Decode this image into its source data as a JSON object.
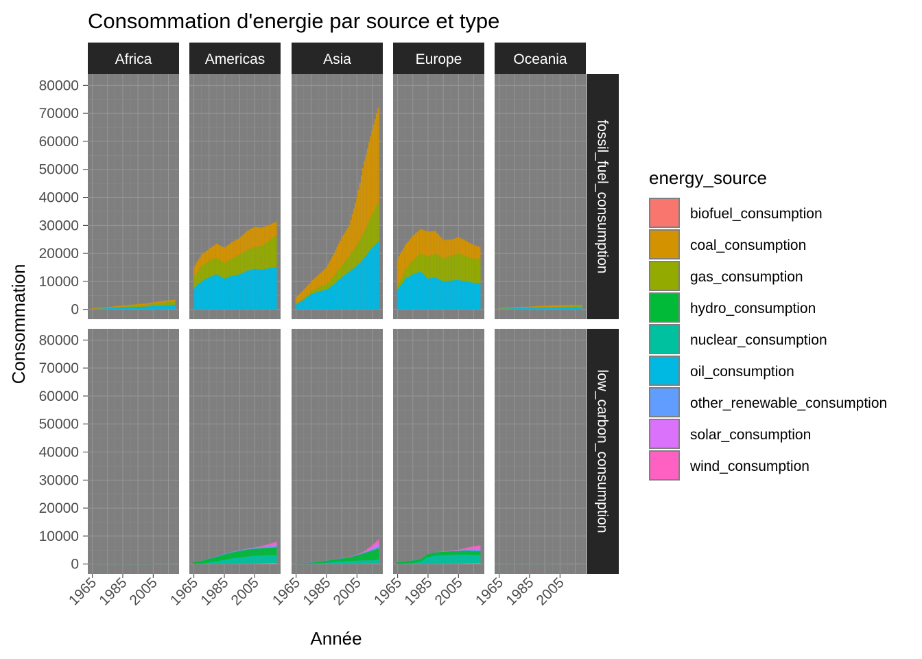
{
  "chart_data": {
    "type": "area",
    "subtype": "stacked-bar-facets",
    "title": "Consommation d'energie par source et type",
    "xlabel": "Année",
    "ylabel": "Consommation",
    "ylim": [
      -3500,
      84000
    ],
    "y_ticks": [
      0,
      10000,
      20000,
      30000,
      40000,
      50000,
      60000,
      70000,
      80000
    ],
    "xlim": [
      1962,
      2022
    ],
    "x_ticks": [
      1965,
      1985,
      2005
    ],
    "facet_cols": [
      "Africa",
      "Americas",
      "Asia",
      "Europe",
      "Oceania"
    ],
    "facet_rows": [
      "fossil_fuel_consumption",
      "low_carbon_consumption"
    ],
    "legend": {
      "title": "energy_source",
      "position": "right",
      "items": [
        {
          "name": "biofuel_consumption",
          "color": "#F8766D"
        },
        {
          "name": "coal_consumption",
          "color": "#D39200"
        },
        {
          "name": "gas_consumption",
          "color": "#93AA00"
        },
        {
          "name": "hydro_consumption",
          "color": "#00BA38"
        },
        {
          "name": "nuclear_consumption",
          "color": "#00C19F"
        },
        {
          "name": "oil_consumption",
          "color": "#00B9E3"
        },
        {
          "name": "other_renewable_consumption",
          "color": "#619CFF"
        },
        {
          "name": "solar_consumption",
          "color": "#DB72FB"
        },
        {
          "name": "wind_consumption",
          "color": "#FF61C3"
        }
      ]
    },
    "stack_order": [
      "oil_consumption",
      "gas_consumption",
      "coal_consumption",
      "biofuel_consumption",
      "nuclear_consumption",
      "hydro_consumption",
      "other_renewable_consumption",
      "solar_consumption",
      "wind_consumption"
    ],
    "years": [
      1965,
      1970,
      1975,
      1980,
      1985,
      1990,
      1995,
      2000,
      2005,
      2010,
      2015,
      2019
    ],
    "panels": {
      "fossil_fuel_consumption": {
        "Africa": {
          "oil_consumption": [
            200,
            300,
            400,
            600,
            700,
            800,
            900,
            1000,
            1200,
            1400,
            1600,
            1700
          ],
          "gas_consumption": [
            20,
            40,
            80,
            150,
            250,
            350,
            450,
            550,
            700,
            900,
            1000,
            1100
          ],
          "coal_consumption": [
            250,
            280,
            330,
            400,
            450,
            500,
            520,
            550,
            600,
            650,
            650,
            650
          ]
        },
        "Americas": {
          "oil_consumption": [
            7500,
            10000,
            11500,
            12500,
            11000,
            12000,
            12500,
            13800,
            14500,
            14200,
            14800,
            15000
          ],
          "gas_consumption": [
            4000,
            5500,
            5800,
            6000,
            5500,
            6200,
            7000,
            7500,
            7800,
            8500,
            10000,
            11500
          ],
          "coal_consumption": [
            3500,
            4000,
            4300,
            5000,
            5500,
            5800,
            6000,
            6700,
            7200,
            6500,
            5500,
            4800
          ]
        },
        "Asia": {
          "oil_consumption": [
            1800,
            3500,
            5500,
            6500,
            7000,
            9000,
            11500,
            13500,
            15500,
            18500,
            22000,
            24000
          ],
          "gas_consumption": [
            200,
            500,
            900,
            1500,
            2000,
            3000,
            4200,
            5500,
            7500,
            9500,
            12000,
            14000
          ],
          "coal_consumption": [
            2300,
            3000,
            3600,
            4500,
            6000,
            8000,
            10000,
            11000,
            17000,
            25000,
            30000,
            34000
          ]
        },
        "Europe": {
          "oil_consumption": [
            7000,
            11000,
            12500,
            13500,
            11000,
            11500,
            10000,
            10300,
            10500,
            10000,
            9500,
            9500
          ],
          "gas_consumption": [
            1500,
            3000,
            5000,
            6500,
            7800,
            8500,
            8200,
            8800,
            9500,
            9000,
            8500,
            8800
          ],
          "coal_consumption": [
            9500,
            9000,
            8700,
            8700,
            9000,
            8000,
            6500,
            5800,
            5800,
            5500,
            5000,
            4000
          ]
        },
        "Oceania": {
          "oil_consumption": [
            300,
            350,
            400,
            450,
            450,
            500,
            520,
            550,
            600,
            650,
            650,
            700
          ],
          "gas_consumption": [
            0,
            20,
            60,
            100,
            150,
            200,
            250,
            300,
            350,
            400,
            450,
            500
          ],
          "coal_consumption": [
            200,
            250,
            300,
            350,
            400,
            450,
            500,
            550,
            550,
            500,
            450,
            400
          ]
        }
      },
      "low_carbon_consumption": {
        "Africa": {
          "hydro_consumption": [
            30,
            40,
            50,
            60,
            70,
            80,
            90,
            100,
            110,
            120,
            130,
            140
          ],
          "nuclear_consumption": [
            0,
            0,
            0,
            0,
            20,
            30,
            40,
            40,
            40,
            40,
            40,
            40
          ],
          "wind_consumption": [
            0,
            0,
            0,
            0,
            0,
            0,
            0,
            0,
            0,
            5,
            15,
            30
          ],
          "solar_consumption": [
            0,
            0,
            0,
            0,
            0,
            0,
            0,
            0,
            0,
            5,
            15,
            40
          ]
        },
        "Americas": {
          "biofuel_consumption": [
            0,
            0,
            0,
            0,
            20,
            40,
            60,
            80,
            150,
            300,
            400,
            450
          ],
          "nuclear_consumption": [
            50,
            200,
            600,
            1000,
            1500,
            2000,
            2300,
            2600,
            2800,
            2800,
            2800,
            2800
          ],
          "hydro_consumption": [
            800,
            1000,
            1300,
            1600,
            1900,
            2100,
            2300,
            2500,
            2500,
            2600,
            2600,
            2700
          ],
          "other_renewable_consumption": [
            50,
            80,
            100,
            150,
            200,
            250,
            300,
            350,
            400,
            450,
            500,
            500
          ],
          "solar_consumption": [
            0,
            0,
            0,
            0,
            0,
            0,
            0,
            0,
            20,
            80,
            300,
            600
          ],
          "wind_consumption": [
            0,
            0,
            0,
            0,
            0,
            0,
            0,
            10,
            50,
            300,
            600,
            900
          ]
        },
        "Asia": {
          "biofuel_consumption": [
            0,
            0,
            0,
            0,
            0,
            0,
            0,
            0,
            20,
            60,
            120,
            200
          ],
          "nuclear_consumption": [
            0,
            50,
            150,
            300,
            500,
            700,
            900,
            1100,
            1200,
            1300,
            1200,
            1400
          ],
          "hydro_consumption": [
            200,
            300,
            400,
            500,
            700,
            900,
            1100,
            1300,
            1900,
            2600,
            3500,
            4000
          ],
          "other_renewable_consumption": [
            20,
            30,
            40,
            60,
            80,
            100,
            120,
            150,
            200,
            300,
            450,
            600
          ],
          "solar_consumption": [
            0,
            0,
            0,
            0,
            0,
            0,
            0,
            0,
            10,
            80,
            600,
            1300
          ],
          "wind_consumption": [
            0,
            0,
            0,
            0,
            0,
            0,
            0,
            10,
            50,
            300,
            800,
            1200
          ]
        },
        "Europe": {
          "biofuel_consumption": [
            0,
            0,
            0,
            0,
            0,
            20,
            40,
            60,
            150,
            300,
            350,
            400
          ],
          "nuclear_consumption": [
            50,
            200,
            400,
            800,
            2500,
            3000,
            3100,
            3200,
            3200,
            3100,
            2900,
            2800
          ],
          "hydro_consumption": [
            700,
            800,
            900,
            1000,
            1100,
            1200,
            1250,
            1300,
            1300,
            1400,
            1400,
            1400
          ],
          "other_renewable_consumption": [
            20,
            30,
            40,
            50,
            60,
            80,
            100,
            150,
            250,
            400,
            500,
            550
          ],
          "solar_consumption": [
            0,
            0,
            0,
            0,
            0,
            0,
            0,
            0,
            10,
            100,
            300,
            400
          ],
          "wind_consumption": [
            0,
            0,
            0,
            0,
            0,
            0,
            20,
            60,
            200,
            500,
            900,
            1100
          ]
        },
        "Oceania": {
          "hydro_consumption": [
            60,
            70,
            80,
            90,
            100,
            110,
            120,
            130,
            130,
            130,
            140,
            140
          ],
          "other_renewable_consumption": [
            5,
            5,
            10,
            10,
            15,
            15,
            20,
            25,
            30,
            35,
            40,
            45
          ],
          "wind_consumption": [
            0,
            0,
            0,
            0,
            0,
            0,
            0,
            0,
            5,
            15,
            30,
            40
          ],
          "solar_consumption": [
            0,
            0,
            0,
            0,
            0,
            0,
            0,
            0,
            2,
            10,
            30,
            60
          ]
        }
      }
    }
  }
}
